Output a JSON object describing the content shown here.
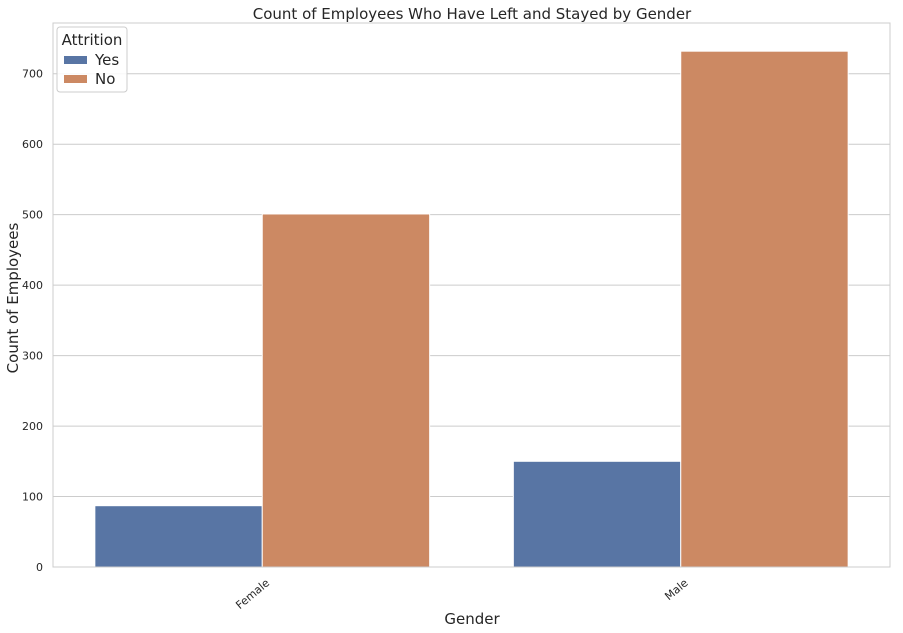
{
  "chart_data": {
    "type": "bar",
    "title": "Count of Employees Who Have Left and Stayed by Gender",
    "xlabel": "Gender",
    "ylabel": "Count of Employees",
    "categories": [
      "Female",
      "Male"
    ],
    "series": [
      {
        "name": "Yes",
        "values": [
          87,
          150
        ],
        "color": "#5875a4"
      },
      {
        "name": "No",
        "values": [
          501,
          732
        ],
        "color": "#cc8963"
      }
    ],
    "ylim": [
      0,
      772
    ],
    "yticks": [
      0,
      100,
      200,
      300,
      400,
      500,
      600,
      700
    ],
    "legend": {
      "title": "Attrition",
      "placement": "top-left"
    },
    "grid": "horizontal",
    "colors": {
      "grid": "#cccccc",
      "frame": "#cccccc",
      "text": "#262626"
    }
  }
}
